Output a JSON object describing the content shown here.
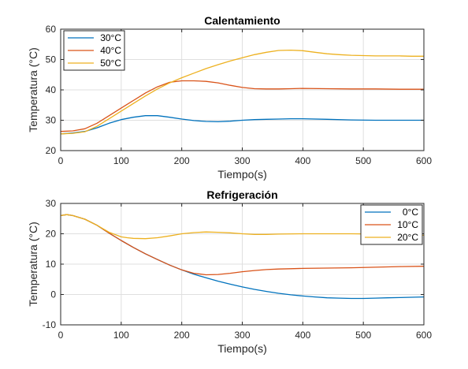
{
  "chart_data": [
    {
      "type": "line",
      "title": "Calentamiento",
      "xlabel": "Tiempo(s)",
      "ylabel": "Temperatura (°C)",
      "xlim": [
        0,
        600
      ],
      "ylim": [
        20,
        60
      ],
      "xticks": [
        0,
        100,
        200,
        300,
        400,
        500,
        600
      ],
      "yticks": [
        20,
        30,
        40,
        50,
        60
      ],
      "grid": true,
      "legend_position": "top-left",
      "series": [
        {
          "name": "30°C",
          "color": "#0072BD",
          "x": [
            0,
            20,
            40,
            60,
            80,
            100,
            120,
            140,
            160,
            180,
            200,
            220,
            240,
            260,
            280,
            300,
            320,
            340,
            360,
            380,
            400,
            440,
            480,
            520,
            560,
            600
          ],
          "y": [
            25.5,
            25.8,
            26.3,
            27.5,
            29.0,
            30.2,
            31.0,
            31.5,
            31.5,
            31.0,
            30.4,
            29.9,
            29.6,
            29.5,
            29.7,
            30.0,
            30.2,
            30.3,
            30.4,
            30.5,
            30.5,
            30.3,
            30.1,
            30.0,
            30.0,
            30.0
          ]
        },
        {
          "name": "40°C",
          "color": "#D95319",
          "x": [
            0,
            20,
            40,
            60,
            80,
            100,
            120,
            140,
            160,
            180,
            200,
            220,
            240,
            260,
            280,
            300,
            320,
            340,
            360,
            380,
            400,
            440,
            480,
            520,
            560,
            600
          ],
          "y": [
            26.3,
            26.5,
            27.2,
            29.0,
            31.5,
            34.0,
            36.5,
            39.0,
            41.0,
            42.5,
            43.0,
            43.0,
            42.8,
            42.3,
            41.5,
            40.8,
            40.4,
            40.3,
            40.3,
            40.4,
            40.5,
            40.4,
            40.3,
            40.3,
            40.2,
            40.2
          ]
        },
        {
          "name": "50°C",
          "color": "#EDB120",
          "x": [
            0,
            20,
            40,
            60,
            80,
            100,
            120,
            140,
            160,
            180,
            200,
            220,
            240,
            260,
            280,
            300,
            320,
            340,
            360,
            380,
            400,
            420,
            440,
            460,
            480,
            500,
            520,
            540,
            560,
            580,
            600
          ],
          "y": [
            25.5,
            25.7,
            26.2,
            28.0,
            30.5,
            33.0,
            35.5,
            38.0,
            40.3,
            42.3,
            44.0,
            45.5,
            47.0,
            48.3,
            49.5,
            50.6,
            51.6,
            52.4,
            53.0,
            53.1,
            52.9,
            52.4,
            51.9,
            51.6,
            51.4,
            51.3,
            51.2,
            51.2,
            51.2,
            51.1,
            51.1
          ]
        }
      ]
    },
    {
      "type": "line",
      "title": "Refrigeración",
      "xlabel": "Tiempo(s)",
      "ylabel": "Temperatura (°C)",
      "xlim": [
        0,
        600
      ],
      "ylim": [
        -10,
        30
      ],
      "xticks": [
        0,
        100,
        200,
        300,
        400,
        500,
        600
      ],
      "yticks": [
        -10,
        0,
        10,
        20,
        30
      ],
      "grid": true,
      "legend_position": "top-right",
      "series": [
        {
          "name": "0°C",
          "color": "#0072BD",
          "x": [
            0,
            10,
            20,
            40,
            60,
            80,
            100,
            120,
            140,
            160,
            180,
            200,
            220,
            240,
            260,
            280,
            300,
            320,
            340,
            360,
            380,
            400,
            420,
            440,
            460,
            480,
            500,
            520,
            540,
            560,
            580,
            600
          ],
          "y": [
            26.0,
            26.3,
            26.0,
            24.8,
            22.8,
            20.2,
            17.8,
            15.5,
            13.4,
            11.5,
            9.7,
            8.1,
            6.7,
            5.5,
            4.4,
            3.4,
            2.5,
            1.7,
            1.0,
            0.4,
            -0.1,
            -0.5,
            -0.8,
            -1.1,
            -1.2,
            -1.3,
            -1.3,
            -1.2,
            -1.1,
            -1.0,
            -0.9,
            -0.8
          ]
        },
        {
          "name": "10°C",
          "color": "#D95319",
          "x": [
            0,
            10,
            20,
            40,
            60,
            80,
            100,
            120,
            140,
            160,
            180,
            200,
            220,
            240,
            260,
            280,
            300,
            320,
            340,
            360,
            380,
            400,
            440,
            480,
            520,
            560,
            600
          ],
          "y": [
            26.0,
            26.3,
            26.0,
            24.8,
            22.8,
            20.2,
            17.8,
            15.5,
            13.4,
            11.5,
            9.7,
            8.1,
            7.0,
            6.5,
            6.6,
            7.0,
            7.5,
            7.9,
            8.2,
            8.4,
            8.5,
            8.6,
            8.7,
            8.8,
            9.0,
            9.2,
            9.3
          ]
        },
        {
          "name": "20°C",
          "color": "#EDB120",
          "x": [
            0,
            10,
            20,
            40,
            60,
            80,
            100,
            110,
            120,
            140,
            160,
            180,
            200,
            220,
            240,
            260,
            280,
            300,
            320,
            340,
            360,
            400,
            440,
            480,
            520,
            560,
            600
          ],
          "y": [
            26.0,
            26.3,
            26.0,
            24.8,
            22.8,
            20.5,
            19.0,
            18.7,
            18.5,
            18.4,
            18.7,
            19.3,
            20.0,
            20.4,
            20.6,
            20.5,
            20.3,
            20.0,
            19.8,
            19.8,
            19.9,
            20.0,
            20.0,
            20.0,
            19.9,
            19.6,
            19.5
          ]
        }
      ]
    }
  ]
}
